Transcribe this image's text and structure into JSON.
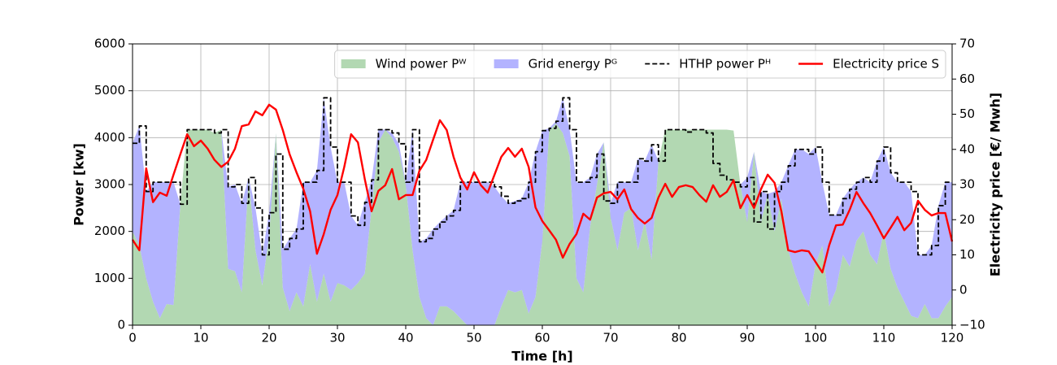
{
  "chart_data": {
    "type": "line",
    "xlabel": "Time [h]",
    "ylabel": "Power [kw]",
    "y2label": "Electricity price [€/ Mwh]",
    "x": [
      0,
      1,
      2,
      3,
      4,
      5,
      6,
      7,
      8,
      9,
      10,
      11,
      12,
      13,
      14,
      15,
      16,
      17,
      18,
      19,
      20,
      21,
      22,
      23,
      24,
      25,
      26,
      27,
      28,
      29,
      30,
      31,
      32,
      33,
      34,
      35,
      36,
      37,
      38,
      39,
      40,
      41,
      42,
      43,
      44,
      45,
      46,
      47,
      48,
      49,
      50,
      51,
      52,
      53,
      54,
      55,
      56,
      57,
      58,
      59,
      60,
      61,
      62,
      63,
      64,
      65,
      66,
      67,
      68,
      69,
      70,
      71,
      72,
      73,
      74,
      75,
      76,
      77,
      78,
      79,
      80,
      81,
      82,
      83,
      84,
      85,
      86,
      87,
      88,
      89,
      90,
      91,
      92,
      93,
      94,
      95,
      96,
      97,
      98,
      99,
      100,
      101,
      102,
      103,
      104,
      105,
      106,
      107,
      108,
      109,
      110,
      111,
      112,
      113,
      114,
      115,
      116,
      117,
      118,
      119,
      120
    ],
    "series": [
      {
        "name": "Wind power Pᵂ",
        "type": "area",
        "stack": true,
        "color": "#b2d8b2",
        "values": [
          2000,
          1700,
          1000,
          500,
          150,
          450,
          430,
          2580,
          4170,
          4170,
          4170,
          4170,
          4100,
          4170,
          1200,
          1150,
          700,
          3150,
          1600,
          850,
          1900,
          4100,
          800,
          300,
          700,
          400,
          1300,
          500,
          1100,
          500,
          900,
          850,
          750,
          900,
          1100,
          2500,
          3900,
          4170,
          4000,
          3700,
          3000,
          1600,
          600,
          150,
          0,
          400,
          400,
          300,
          150,
          0,
          0,
          0,
          0,
          0,
          400,
          750,
          700,
          750,
          250,
          600,
          1800,
          4150,
          4300,
          4100,
          3600,
          1000,
          700,
          2100,
          3000,
          3900,
          2300,
          1600,
          2400,
          2500,
          1600,
          2200,
          1400,
          3500,
          4170,
          4170,
          4170,
          4170,
          4170,
          4170,
          4170,
          4170,
          4170,
          4170,
          4150,
          3000,
          2200,
          3700,
          2200,
          2800,
          2000,
          2700,
          1600,
          1100,
          700,
          400,
          1300,
          1700,
          400,
          750,
          1500,
          1250,
          1800,
          2000,
          1500,
          1300,
          2000,
          1200,
          800,
          500,
          200,
          150,
          450,
          150,
          150,
          400,
          600
        ]
      },
      {
        "name": "Grid energy Pᴳ",
        "type": "area",
        "stack": true,
        "color": "#b3b3ff",
        "values": [
          1880,
          2550,
          1850,
          2550,
          2900,
          2600,
          2620,
          0,
          0,
          0,
          0,
          0,
          0,
          0,
          1750,
          1850,
          1900,
          0,
          900,
          650,
          500,
          0,
          820,
          1550,
          1350,
          2650,
          1750,
          2800,
          3750,
          3300,
          2150,
          2200,
          1580,
          1230,
          1520,
          600,
          270,
          0,
          100,
          170,
          50,
          2570,
          1180,
          1700,
          2050,
          1800,
          1930,
          2150,
          2900,
          3050,
          3050,
          3050,
          3050,
          2950,
          2350,
          1850,
          1950,
          1950,
          2800,
          3100,
          2350,
          50,
          50,
          750,
          570,
          2050,
          2350,
          1050,
          650,
          0,
          300,
          1450,
          650,
          550,
          1950,
          1300,
          2450,
          0,
          0,
          0,
          0,
          0,
          0,
          0,
          0,
          0,
          0,
          0,
          0,
          0,
          950,
          0,
          650,
          0,
          850,
          350,
          1800,
          2650,
          3050,
          3250,
          2500,
          1350,
          1950,
          1600,
          1200,
          1650,
          1250,
          1150,
          1550,
          2200,
          1800,
          2050,
          2250,
          2550,
          2650,
          1350,
          1050,
          1550,
          2400,
          2650,
          2450
        ]
      },
      {
        "name": "HTHP power Pᴴ",
        "type": "line",
        "linestyle": "dashed",
        "drawstyle": "steps-post",
        "color": "#000000",
        "values": [
          3880,
          4250,
          2850,
          3050,
          3050,
          3050,
          3050,
          2580,
          4170,
          4170,
          4170,
          4170,
          4100,
          4170,
          2950,
          3000,
          2600,
          3150,
          2500,
          1500,
          2400,
          3650,
          1620,
          1850,
          2050,
          3050,
          3050,
          3300,
          4850,
          3800,
          3050,
          3050,
          2330,
          2130,
          2620,
          3100,
          4170,
          4170,
          4100,
          3870,
          3050,
          4170,
          1780,
          1850,
          2050,
          2200,
          2330,
          2450,
          3050,
          3050,
          3050,
          3050,
          3050,
          2950,
          2750,
          2600,
          2650,
          2700,
          3050,
          3700,
          4150,
          4200,
          4350,
          4850,
          4170,
          3050,
          3050,
          3150,
          3650,
          2650,
          2600,
          3050,
          3050,
          3050,
          3550,
          3500,
          3850,
          3500,
          4170,
          4170,
          4170,
          4120,
          4170,
          4170,
          4100,
          3450,
          3200,
          3100,
          3050,
          2950,
          3150,
          2200,
          2850,
          2050,
          2850,
          3050,
          3400,
          3750,
          3750,
          3650,
          3800,
          3050,
          2350,
          2350,
          2700,
          2900,
          3050,
          3150,
          3050,
          3500,
          3800,
          3250,
          3050,
          3050,
          2850,
          1500,
          1500,
          1700,
          2550,
          3050,
          3050
        ]
      },
      {
        "name": "Electricity price S",
        "type": "line",
        "linestyle": "solid",
        "axis": "y2",
        "color": "#ff0000",
        "values": [
          14.3,
          11.3,
          34.6,
          25,
          27.7,
          26.8,
          32.8,
          38.6,
          44.3,
          40.9,
          42.5,
          40.2,
          37,
          35,
          36.5,
          40.2,
          46.6,
          47.1,
          50.8,
          49.7,
          52.7,
          51.3,
          45.5,
          38.6,
          33.5,
          28.8,
          22.4,
          10.3,
          15.9,
          22.8,
          27,
          35,
          44.3,
          42,
          31.6,
          22.4,
          28.2,
          29.8,
          34.4,
          25.8,
          27,
          27,
          33.9,
          37,
          42.7,
          48.3,
          45.5,
          37.9,
          32,
          28.6,
          33.5,
          29.8,
          27.7,
          32.8,
          37.9,
          40.4,
          37.9,
          40.2,
          35,
          23.5,
          19.6,
          17,
          14.3,
          9.2,
          13.1,
          15.9,
          21.7,
          20,
          26.3,
          27.5,
          27.9,
          25.8,
          28.6,
          23,
          20.5,
          18.9,
          20.5,
          26.3,
          30.2,
          26.5,
          29.3,
          29.8,
          29.3,
          27,
          25.1,
          29.8,
          26.5,
          27.9,
          31.2,
          23.3,
          27,
          23.3,
          28.6,
          32.8,
          30.5,
          22.4,
          11.3,
          10.8,
          11.3,
          11,
          8,
          5,
          12.7,
          18.4,
          18.6,
          22.8,
          27.9,
          24.7,
          21.9,
          18.4,
          14.7,
          17.7,
          20.8,
          17,
          19.1,
          25.4,
          22.8,
          21.2,
          21.9,
          21.9,
          13.8
        ]
      }
    ],
    "xlim": [
      0,
      120
    ],
    "xticks": [
      0,
      10,
      20,
      30,
      40,
      50,
      60,
      70,
      80,
      90,
      100,
      110,
      120
    ],
    "ylim": [
      0,
      6000
    ],
    "yticks": [
      0,
      1000,
      2000,
      3000,
      4000,
      5000,
      6000
    ],
    "y2lim": [
      -10,
      70
    ],
    "y2ticks": [
      {
        "value": -10,
        "label": "−10"
      },
      0,
      10,
      20,
      30,
      40,
      50,
      60,
      70
    ],
    "grid": true,
    "legend": "upper right"
  }
}
